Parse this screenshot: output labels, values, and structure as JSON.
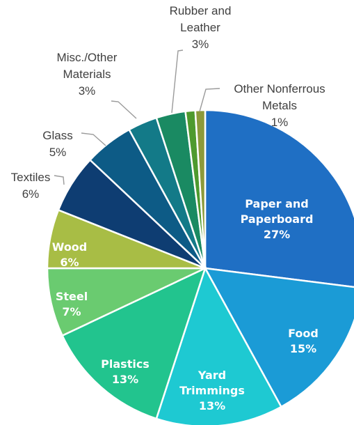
{
  "chart_data": {
    "type": "pie",
    "title": "",
    "legend": "none",
    "start_angle_deg": 0,
    "direction": "clockwise",
    "slices": [
      {
        "key": "paper",
        "label_lines": [
          "Paper and",
          "Paperboard"
        ],
        "value": 27,
        "value_label": "27%",
        "color": "#1f6fc4",
        "label_placement": "inside"
      },
      {
        "key": "food",
        "label_lines": [
          "Food"
        ],
        "value": 15,
        "value_label": "15%",
        "color": "#1b9bd6",
        "label_placement": "inside"
      },
      {
        "key": "yard",
        "label_lines": [
          "Yard",
          "Trimmings"
        ],
        "value": 13,
        "value_label": "13%",
        "color": "#1ec9d2",
        "label_placement": "inside"
      },
      {
        "key": "plastics",
        "label_lines": [
          "Plastics"
        ],
        "value": 13,
        "value_label": "13%",
        "color": "#22c48e",
        "label_placement": "inside"
      },
      {
        "key": "steel",
        "label_lines": [
          "Steel"
        ],
        "value": 7,
        "value_label": "7%",
        "color": "#6acb70",
        "label_placement": "inside"
      },
      {
        "key": "wood",
        "label_lines": [
          "Wood"
        ],
        "value": 6,
        "value_label": "6%",
        "color": "#a8bd45",
        "label_placement": "inside"
      },
      {
        "key": "textiles",
        "label_lines": [
          "Textiles"
        ],
        "value": 6,
        "value_label": "6%",
        "color": "#0e3d72",
        "label_placement": "outside"
      },
      {
        "key": "glass",
        "label_lines": [
          "Glass"
        ],
        "value": 5,
        "value_label": "5%",
        "color": "#0d5b86",
        "label_placement": "outside"
      },
      {
        "key": "misc",
        "label_lines": [
          "Misc./Other",
          "Materials"
        ],
        "value": 3,
        "value_label": "3%",
        "color": "#137a88",
        "label_placement": "outside"
      },
      {
        "key": "rubber",
        "label_lines": [
          "Rubber and",
          "Leather"
        ],
        "value": 3,
        "value_label": "3%",
        "color": "#1a8a62",
        "label_placement": "outside"
      },
      {
        "key": "nonferrous",
        "label_lines": [
          "Other Nonferrous",
          "Metals"
        ],
        "value": 1,
        "value_label": "1%",
        "color": "#4e9a2e",
        "label_placement": "outside"
      },
      {
        "key": "other",
        "label_lines": [],
        "value": 1,
        "value_label": "",
        "color": "#8c9a3a",
        "label_placement": "none"
      }
    ]
  }
}
